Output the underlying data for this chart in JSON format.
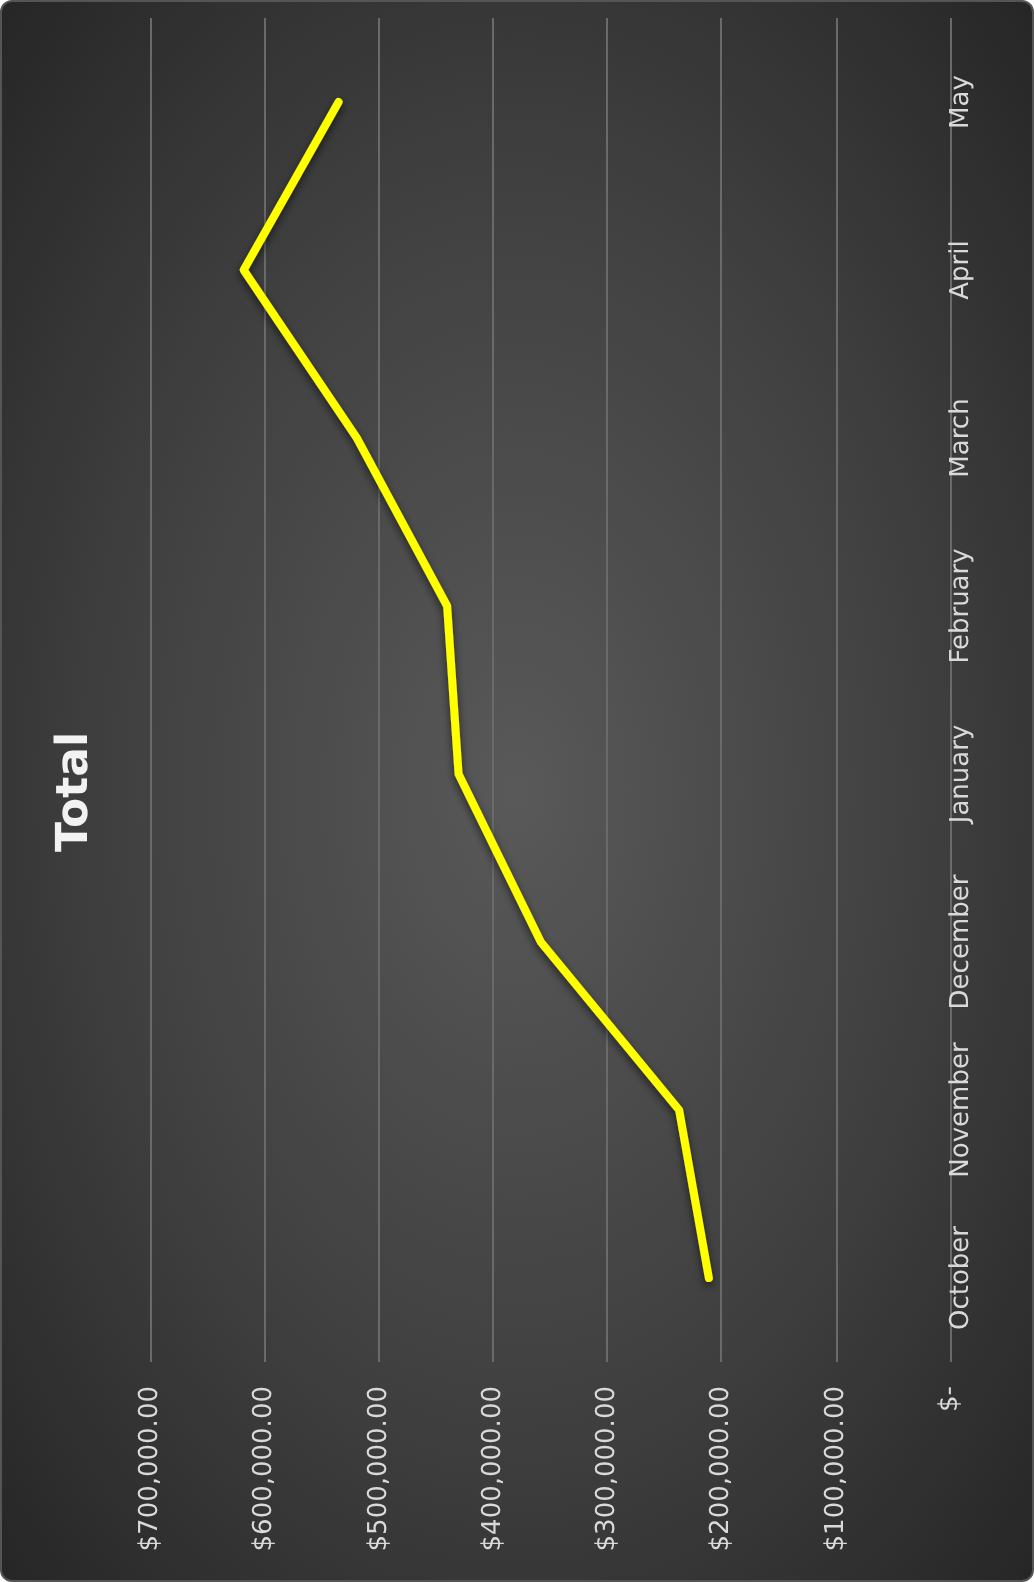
{
  "chart_data": {
    "type": "line",
    "title": "Total",
    "orientation": "horizontal",
    "categories": [
      "May",
      "April",
      "March",
      "February",
      "January",
      "December",
      "November",
      "October"
    ],
    "series": [
      {
        "color": "#ffff00",
        "values": [
          535000,
          618000,
          519000,
          440000,
          430000,
          358000,
          237000,
          211000
        ]
      }
    ],
    "xlim": [
      700000,
      0
    ],
    "xticks": [
      {
        "value": 700000,
        "label": "$700,000.00"
      },
      {
        "value": 600000,
        "label": "$600,000.00"
      },
      {
        "value": 500000,
        "label": "$500,000.00"
      },
      {
        "value": 400000,
        "label": "$400,000.00"
      },
      {
        "value": 300000,
        "label": "$300,000.00"
      },
      {
        "value": 200000,
        "label": "$200,000.00"
      },
      {
        "value": 100000,
        "label": "$100,000.00"
      },
      {
        "value": 0,
        "label": "$-"
      }
    ],
    "grid": "x",
    "marker": "none",
    "line_style": "solid"
  }
}
